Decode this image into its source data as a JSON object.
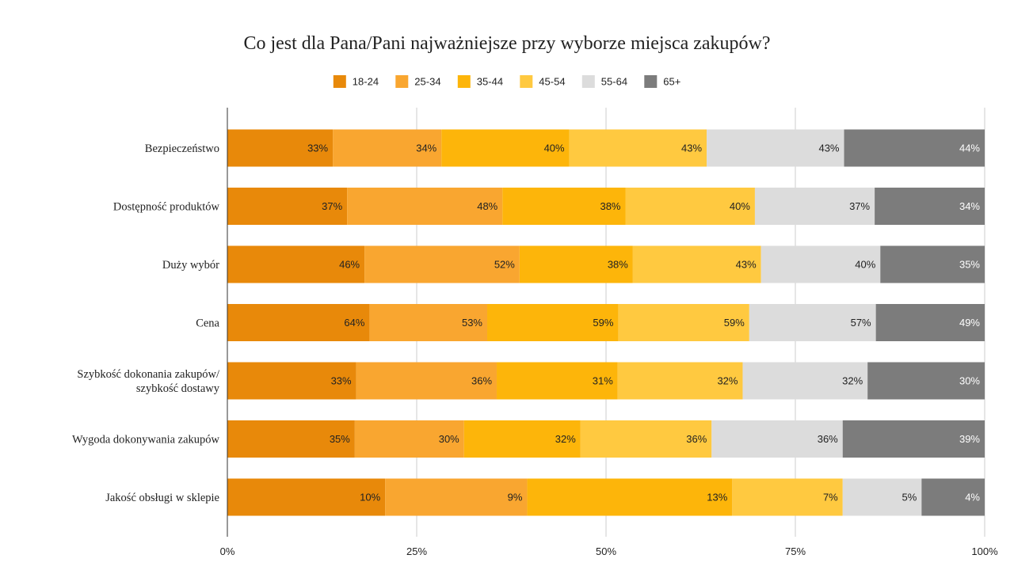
{
  "chart_data": {
    "type": "bar",
    "orientation": "horizontal",
    "stacking": "percent",
    "title": "Co jest dla Pana/Pani najważniejsze przy wyborze miejsca zakupów?",
    "legend_position": "top",
    "grid": true,
    "xlim": [
      0,
      100
    ],
    "x_ticks": [
      "0%",
      "25%",
      "50%",
      "75%",
      "100%"
    ],
    "categories": [
      [
        "Bezpieczeństwo"
      ],
      [
        "Dostępność produktów"
      ],
      [
        "Duży wybór"
      ],
      [
        "Cena"
      ],
      [
        "Szybkość dokonania zakupów/",
        "szybkość dostawy"
      ],
      [
        "Wygoda dokonywania zakupów"
      ],
      [
        "Jakość obsługi w sklepie"
      ]
    ],
    "series": [
      {
        "name": "18-24",
        "color": "#e8890a",
        "label_color": "#222222",
        "values": [
          33,
          37,
          46,
          64,
          33,
          35,
          10
        ],
        "labels": [
          "33%",
          "37%",
          "46%",
          "64%",
          "33%",
          "35%",
          "10%"
        ]
      },
      {
        "name": "25-34",
        "color": "#f9a630",
        "label_color": "#222222",
        "values": [
          34,
          48,
          52,
          53,
          36,
          30,
          9
        ],
        "labels": [
          "34%",
          "48%",
          "52%",
          "53%",
          "36%",
          "30%",
          "9%"
        ]
      },
      {
        "name": "35-44",
        "color": "#fdb50a",
        "label_color": "#222222",
        "values": [
          40,
          38,
          38,
          59,
          31,
          32,
          13
        ],
        "labels": [
          "40%",
          "38%",
          "38%",
          "59%",
          "31%",
          "32%",
          "13%"
        ]
      },
      {
        "name": "45-54",
        "color": "#ffc940",
        "label_color": "#222222",
        "values": [
          43,
          40,
          43,
          59,
          32,
          36,
          7
        ],
        "labels": [
          "43%",
          "40%",
          "43%",
          "59%",
          "32%",
          "36%",
          "7%"
        ]
      },
      {
        "name": "55-64",
        "color": "#dcdcdc",
        "label_color": "#222222",
        "values": [
          43,
          37,
          40,
          57,
          32,
          36,
          5
        ],
        "labels": [
          "43%",
          "37%",
          "40%",
          "57%",
          "32%",
          "36%",
          "5%"
        ]
      },
      {
        "name": "65+",
        "color": "#7c7c7c",
        "label_color": "#ffffff",
        "values": [
          44,
          34,
          35,
          49,
          30,
          39,
          4
        ],
        "labels": [
          "44%",
          "34%",
          "35%",
          "49%",
          "30%",
          "39%",
          "4%"
        ]
      }
    ]
  }
}
